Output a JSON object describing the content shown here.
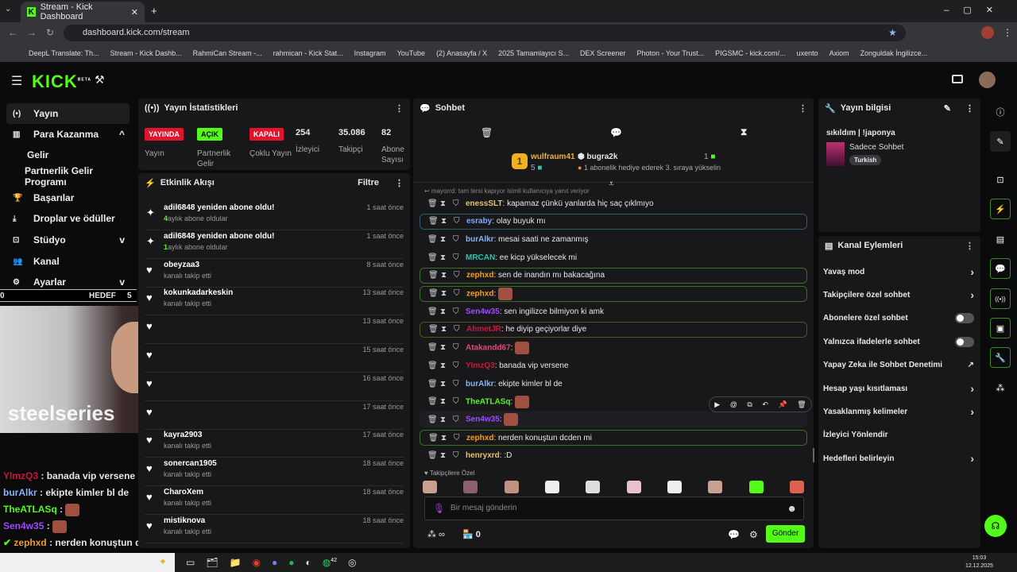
{
  "browser": {
    "tab_title": "Stream - Kick Dashboard",
    "url": "dashboard.kick.com/stream",
    "bookmarks": [
      "DeepL Translate: Th...",
      "Stream - Kick Dashb...",
      "RahmiCan Stream -...",
      "rahmican - Kick Stat...",
      "Instagram",
      "YouTube",
      "(2) Anasayfa / X",
      "2025 Tamamlayıcı S...",
      "DEX Screener",
      "Photon - Your Trust...",
      "PIGSMC - kick.com/...",
      "uxento",
      "Axiom",
      "Zonguldak İngilizce..."
    ]
  },
  "header": {
    "logo": "KICK",
    "beta": "BETA"
  },
  "sidebar": {
    "items": [
      {
        "label": "Yayın",
        "icon": "broadcast-icon",
        "active": true
      },
      {
        "label": "Para Kazanma",
        "icon": "chart-icon",
        "chev": "^"
      },
      {
        "label": "Gelir",
        "sub": true
      },
      {
        "label": "Partnerlik Gelir Programı",
        "sub": true
      },
      {
        "label": "Başarılar",
        "icon": "trophy-icon"
      },
      {
        "label": "Droplar ve ödüller",
        "icon": "drop-icon"
      },
      {
        "label": "Stüdyo",
        "icon": "studio-icon",
        "chev": "v"
      },
      {
        "label": "Kanal",
        "icon": "users-icon"
      },
      {
        "label": "Ayarlar",
        "icon": "gear-icon",
        "chev": "v"
      }
    ]
  },
  "overlay": {
    "watermark": "steelseries",
    "goal_label": "HEDEF",
    "goal_left": "0",
    "goal_count": "5",
    "chat": [
      {
        "user": "YlmzQ3",
        "text": "banada vip versene",
        "color": "#d0143c"
      },
      {
        "user": "burAlkr",
        "text": "ekipte kimler bl de",
        "color": "#8ab4f8"
      },
      {
        "user": "TheATLASq",
        "text": "",
        "color": "#53fc18",
        "emote": true
      },
      {
        "user": "Sen4w35",
        "text": "",
        "color": "#9b4dff",
        "emote": true
      },
      {
        "user": "zephxd",
        "text": "nerden konuştun dcden mi",
        "color": "#f0a020",
        "verified": true
      },
      {
        "user": "henryxrd",
        "text": ":D",
        "color": "#e8c070"
      }
    ]
  },
  "stats": {
    "title": "Yayın İstatistikleri",
    "items": [
      {
        "badge": "YAYINDA",
        "badge_color": "#e0142c",
        "label": "Yayın"
      },
      {
        "badge": "AÇIK",
        "badge_color": "#53fc18",
        "label": "Partnerlik Gelir"
      },
      {
        "badge": "KAPALI",
        "badge_color": "#e0142c",
        "label": "Çoklu Yayın"
      }
    ],
    "numbers": [
      {
        "value": "254",
        "label": "İzleyici"
      },
      {
        "value": "35.086",
        "label": "Takipçi"
      },
      {
        "value": "82",
        "label": "Abone Sayısı"
      }
    ]
  },
  "events": {
    "title": "Etkinlik Akışı",
    "filter": "Filtre",
    "items": [
      {
        "name": "adil6848 yeniden abone oldu!",
        "count": "4",
        "sub": "aylık abone oldular",
        "time": "1 saat önce",
        "icon": "sparkle-icon"
      },
      {
        "name": "adil6848 yeniden abone oldu!",
        "count": "1",
        "sub": "aylık abone oldular",
        "time": "1 saat önce",
        "icon": "sparkle-icon"
      },
      {
        "name": "obeyzaa3",
        "sub": "kanalı takip etti",
        "time": "8 saat önce",
        "icon": "heart-icon"
      },
      {
        "name": "kokunkadarkeskin",
        "sub": "kanalı takip etti",
        "time": "13 saat önce",
        "icon": "heart-icon"
      },
      {
        "name": "",
        "sub": "",
        "time": "13 saat önce",
        "icon": "heart-icon"
      },
      {
        "name": "",
        "sub": "",
        "time": "15 saat önce",
        "icon": "heart-icon"
      },
      {
        "name": "",
        "sub": "",
        "time": "16 saat önce",
        "icon": "heart-icon"
      },
      {
        "name": "",
        "sub": "",
        "time": "17 saat önce",
        "icon": "heart-icon"
      },
      {
        "name": "kayra2903",
        "sub": "kanalı takip etti",
        "time": "17 saat önce",
        "icon": "heart-icon"
      },
      {
        "name": "sonercan1905",
        "sub": "kanalı takip etti",
        "time": "18 saat önce",
        "icon": "heart-icon"
      },
      {
        "name": "CharoXem",
        "sub": "kanalı takip etti",
        "time": "18 saat önce",
        "icon": "heart-icon"
      },
      {
        "name": "mistiknova",
        "sub": "kanalı takip etti",
        "time": "18 saat önce",
        "icon": "heart-icon"
      }
    ]
  },
  "chat": {
    "title": "Sohbet",
    "leaderboard": {
      "first_user": "wulfraum41",
      "first_rank": "1",
      "first_count": "5",
      "second_user": "bugra2k",
      "second_count": "1",
      "third_text": "1 abonelik hediye ederek 3. sıraya yükselin"
    },
    "reply_note": "mayorrd: tam tersi kapıyor isimli kullanıcıya yanıt veriyor",
    "messages": [
      {
        "user": "enessSLT",
        "text": "kapamaz çünkü yanlarda hiç saç çıklmıyo",
        "color": "#e8c070"
      },
      {
        "user": "esraby",
        "text": "olay buyuk mı",
        "color": "#7fa8ff",
        "hl": "#2f5f6a"
      },
      {
        "user": "burAlkr",
        "text": "mesai saati ne zamanmış",
        "color": "#8ab4f8"
      },
      {
        "user": "MRCAN",
        "text": "ee kicp yükselecek mi",
        "color": "#20c9b0"
      },
      {
        "user": "zephxd",
        "text": "sen de inandın mı bakacağına",
        "color": "#f0a020",
        "hl": "#3a6d25"
      },
      {
        "user": "zephxd",
        "text": "",
        "color": "#f0a020",
        "hl": "#3a6d25",
        "emote": true
      },
      {
        "user": "Sen4w35",
        "text": "sen ingilizce bilmiyon ki amk",
        "color": "#9b4dff"
      },
      {
        "user": "AhmetJR",
        "text": "he diyip geçiyorlar diye",
        "color": "#d0143c",
        "hl": "#5a5020"
      },
      {
        "user": "Atakandd67",
        "text": "",
        "color": "#e04a7a",
        "emote": true
      },
      {
        "user": "YlmzQ3",
        "text": "banada vip versene",
        "color": "#d0143c"
      },
      {
        "user": "burAlkr",
        "text": "ekipte kimler bl de",
        "color": "#8ab4f8"
      },
      {
        "user": "TheATLASq",
        "text": "",
        "color": "#53fc18",
        "emote": true
      },
      {
        "user": "Sen4w35",
        "text": "",
        "color": "#9b4dff",
        "emote": true
      },
      {
        "user": "zephxd",
        "text": "nerden konuştun dcden mi",
        "color": "#f0a020",
        "hl": "#3a6d25"
      },
      {
        "user": "henryxrd",
        "text": ":D",
        "color": "#e8c070"
      }
    ],
    "emote_label": "Takipçilere Özel",
    "input_placeholder": "Bir mesaj gönderin",
    "points": "∞",
    "store_count": "0",
    "send": "Gönder"
  },
  "stream_info": {
    "title": "Yayın bilgisi",
    "stream_title": "sıkıldım | !japonya",
    "category": "Sadece Sohbet",
    "tag": "Turkish"
  },
  "channel_actions": {
    "title": "Kanal Eylemleri",
    "items": [
      {
        "label": "Yavaş mod",
        "type": "arrow"
      },
      {
        "label": "Takipçilere özel sohbet",
        "type": "arrow"
      },
      {
        "label": "Abonelere özel sohbet",
        "type": "toggle",
        "on": false
      },
      {
        "label": "Yalnızca ifadelerle sohbet",
        "type": "toggle",
        "on": false
      },
      {
        "label": "Yapay Zeka ile Sohbet Denetimi",
        "type": "external"
      },
      {
        "label": "Hesap yaşı kısıtlaması",
        "type": "arrow"
      },
      {
        "label": "Yasaklanmış kelimeler",
        "type": "arrow"
      },
      {
        "label": "İzleyici Yönlendir",
        "type": "none"
      },
      {
        "label": "Hedefleri belirleyin",
        "type": "arrow"
      }
    ]
  },
  "taskbar": {
    "time": "15:03",
    "date": "12.12.2025",
    "whatsapp_badge": "42"
  },
  "colors": {
    "accent": "#53fc18",
    "panel": "#18181b",
    "bg": "#0b0b0c"
  }
}
